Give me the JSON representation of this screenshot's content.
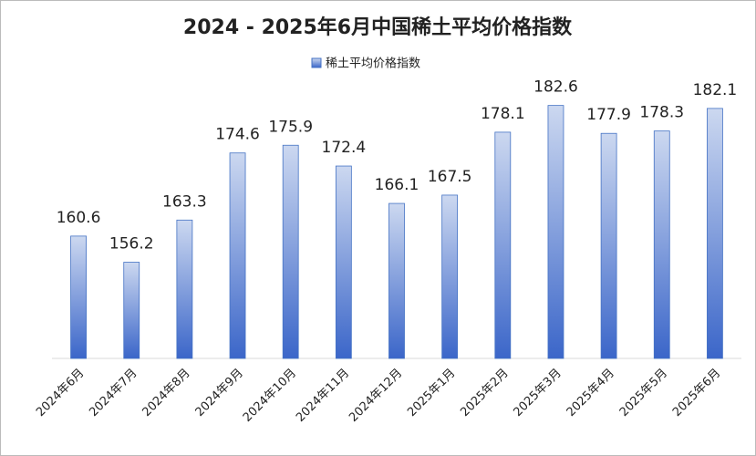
{
  "chart_data": {
    "type": "bar",
    "title": "2024 - 2025年6月中国稀土平均价格指数",
    "series": [
      {
        "name": "稀土平均价格指数",
        "color": "#4472c4",
        "values": [
          160.6,
          156.2,
          163.3,
          174.6,
          175.9,
          172.4,
          166.1,
          167.5,
          178.1,
          182.6,
          177.9,
          178.3,
          182.1
        ]
      }
    ],
    "categories": [
      "2024年6月",
      "2024年7月",
      "2024年8月",
      "2024年9月",
      "2024年10月",
      "2024年11月",
      "2024年12月",
      "2025年1月",
      "2025年2月",
      "2025年3月",
      "2025年4月",
      "2025年5月",
      "2025年6月"
    ],
    "ylim": [
      140,
      185
    ],
    "legend": "top"
  }
}
